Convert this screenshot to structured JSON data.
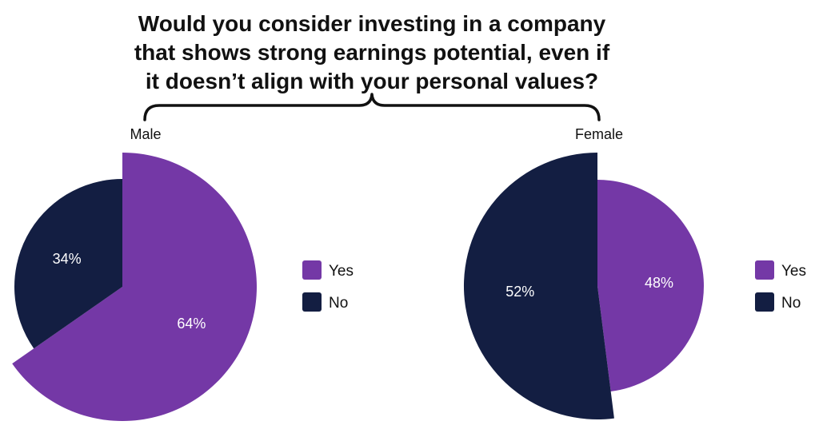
{
  "title_lines": [
    "Would you consider investing in a company",
    "that shows strong earnings potential, even if",
    "it doesn’t align with your personal values?"
  ],
  "colors": {
    "yes": "#7438A6",
    "no": "#131E42",
    "text": "#111111",
    "label": "#ffffff"
  },
  "chart_data": [
    {
      "type": "pie",
      "group": "Male",
      "slices": [
        {
          "name": "Yes",
          "value": 64,
          "label": "64%"
        },
        {
          "name": "No",
          "value": 34,
          "label": "34%"
        }
      ],
      "legend": [
        "Yes",
        "No"
      ],
      "legend_position": "right"
    },
    {
      "type": "pie",
      "group": "Female",
      "slices": [
        {
          "name": "Yes",
          "value": 48,
          "label": "48%"
        },
        {
          "name": "No",
          "value": 52,
          "label": "52%"
        }
      ],
      "legend": [
        "Yes",
        "No"
      ],
      "legend_position": "right"
    }
  ]
}
